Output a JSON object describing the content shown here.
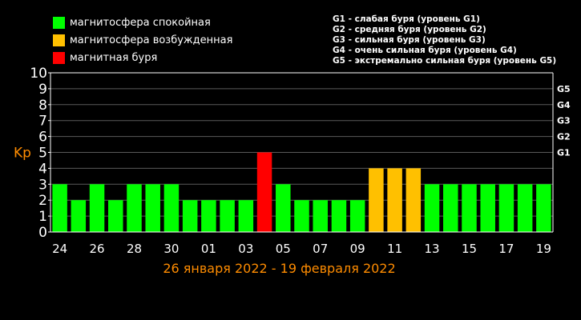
{
  "legend": [
    {
      "label": "магнитосфера спокойная",
      "color": "#00ff00"
    },
    {
      "label": "магнитосфера возбужденная",
      "color": "#ffc000"
    },
    {
      "label": "магнитная буря",
      "color": "#ff0000"
    }
  ],
  "storm_levels": [
    "G1 - слабая буря (уровень G1)",
    "G2 - средняя буря (уровень G2)",
    "G3 - сильная буря (уровень G3)",
    "G4 - очень сильная буря (уровень G4)",
    "G5 - экстремально сильная буря (уровень G5)"
  ],
  "chart_data": {
    "type": "bar",
    "title": "",
    "xlabel": "26 января 2022 - 19 февраля 2022",
    "ylabel": "Kp",
    "ylim": [
      0,
      10
    ],
    "yticks": [
      "0",
      "1",
      "2",
      "3",
      "4",
      "5",
      "6",
      "7",
      "8",
      "9",
      "10"
    ],
    "right_ticks": [
      {
        "value": 5,
        "label": "G1"
      },
      {
        "value": 6,
        "label": "G2"
      },
      {
        "value": 7,
        "label": "G3"
      },
      {
        "value": 8,
        "label": "G4"
      },
      {
        "value": 9,
        "label": "G5"
      }
    ],
    "x_tick_labels": [
      "24",
      "26",
      "28",
      "30",
      "01",
      "03",
      "05",
      "07",
      "09",
      "11",
      "13",
      "15",
      "17",
      "19"
    ],
    "grid": true,
    "values": [
      3,
      2,
      3,
      2,
      3,
      3,
      3,
      2,
      2,
      2,
      2,
      5,
      3,
      2,
      2,
      2,
      2,
      4,
      4,
      4,
      3,
      3,
      3,
      3,
      3,
      3,
      3
    ],
    "colors": [
      "#00ff00",
      "#00ff00",
      "#00ff00",
      "#00ff00",
      "#00ff00",
      "#00ff00",
      "#00ff00",
      "#00ff00",
      "#00ff00",
      "#00ff00",
      "#00ff00",
      "#ff0000",
      "#00ff00",
      "#00ff00",
      "#00ff00",
      "#00ff00",
      "#00ff00",
      "#ffc000",
      "#ffc000",
      "#ffc000",
      "#00ff00",
      "#00ff00",
      "#00ff00",
      "#00ff00",
      "#00ff00",
      "#00ff00",
      "#00ff00"
    ],
    "axis_color": "#ffffff",
    "label_color": "#ff8c00"
  }
}
